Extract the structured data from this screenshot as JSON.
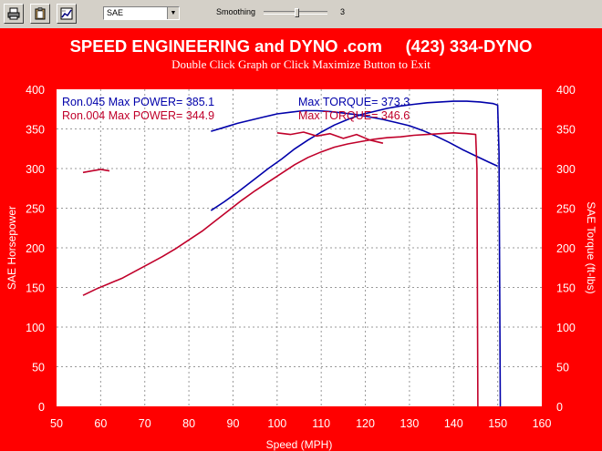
{
  "toolbar": {
    "buttons": [
      "printer-icon",
      "clipboard-icon",
      "chart-options-icon"
    ],
    "mode_select": "SAE",
    "smoothing_label": "Smoothing",
    "smoothing_value": "3"
  },
  "header": {
    "title": "SPEED ENGINEERING and DYNO .com     (423) 334-DYNO",
    "subtitle": "Double Click Graph or Click Maximize Button to Exit"
  },
  "chart_data": {
    "type": "line",
    "xlabel": "Speed (MPH)",
    "ylabel_left": "SAE Horsepower",
    "ylabel_right": "SAE Torque (ft-lbs)",
    "xlim": [
      50,
      160
    ],
    "ylim": [
      0,
      400
    ],
    "x_ticks": [
      50,
      60,
      70,
      80,
      90,
      100,
      110,
      120,
      130,
      140,
      150,
      160
    ],
    "y_ticks": [
      0,
      50,
      100,
      150,
      200,
      250,
      300,
      350,
      400
    ],
    "grid": true,
    "legend": [
      {
        "run": "Ron.045",
        "power_label": "Max POWER= 385.1",
        "torque_label": "Max TORQUE= 373.3",
        "color": "#0000aa"
      },
      {
        "run": "Ron.004",
        "power_label": "Max POWER= 344.9",
        "torque_label": "Max TORQUE= 346.6",
        "color": "#c0002a"
      }
    ],
    "series": [
      {
        "name": "Ron.045",
        "kind": "power",
        "color": "#0000aa",
        "points": [
          [
            85,
            247
          ],
          [
            88,
            258
          ],
          [
            91,
            270
          ],
          [
            95,
            287
          ],
          [
            98,
            300
          ],
          [
            101,
            312
          ],
          [
            104,
            325
          ],
          [
            107,
            336
          ],
          [
            110,
            346
          ],
          [
            113,
            355
          ],
          [
            116,
            362
          ],
          [
            119,
            368
          ],
          [
            122,
            372
          ],
          [
            125,
            376
          ],
          [
            128,
            379
          ],
          [
            131,
            381
          ],
          [
            134,
            383
          ],
          [
            137,
            384
          ],
          [
            140,
            385
          ],
          [
            143,
            385
          ],
          [
            146,
            384
          ],
          [
            149,
            382
          ],
          [
            150,
            380
          ],
          [
            150.3,
            320
          ],
          [
            150.6,
            0
          ]
        ]
      },
      {
        "name": "Ron.045",
        "kind": "torque",
        "color": "#0000aa",
        "points": [
          [
            85,
            347
          ],
          [
            88,
            352
          ],
          [
            91,
            357
          ],
          [
            94,
            361
          ],
          [
            97,
            365
          ],
          [
            100,
            369
          ],
          [
            103,
            371
          ],
          [
            106,
            373
          ],
          [
            109,
            373
          ],
          [
            112,
            372
          ],
          [
            115,
            370
          ],
          [
            118,
            368
          ],
          [
            121,
            365
          ],
          [
            124,
            362
          ],
          [
            127,
            358
          ],
          [
            130,
            354
          ],
          [
            133,
            348
          ],
          [
            136,
            341
          ],
          [
            139,
            333
          ],
          [
            142,
            324
          ],
          [
            145,
            316
          ],
          [
            148,
            308
          ],
          [
            150,
            303
          ]
        ]
      },
      {
        "name": "Ron.004",
        "kind": "power",
        "color": "#c0002a",
        "points": [
          [
            56,
            140
          ],
          [
            59,
            148
          ],
          [
            62,
            155
          ],
          [
            65,
            162
          ],
          [
            68,
            171
          ],
          [
            71,
            180
          ],
          [
            74,
            189
          ],
          [
            77,
            199
          ],
          [
            80,
            210
          ],
          [
            83,
            221
          ],
          [
            86,
            234
          ],
          [
            89,
            247
          ],
          [
            92,
            260
          ],
          [
            95,
            272
          ],
          [
            98,
            283
          ],
          [
            101,
            294
          ],
          [
            104,
            305
          ],
          [
            107,
            314
          ],
          [
            110,
            321
          ],
          [
            113,
            327
          ],
          [
            116,
            331
          ],
          [
            119,
            334
          ],
          [
            122,
            337
          ],
          [
            125,
            339
          ],
          [
            128,
            340
          ],
          [
            131,
            342
          ],
          [
            134,
            343
          ],
          [
            137,
            344
          ],
          [
            140,
            345
          ],
          [
            143,
            344
          ],
          [
            145,
            343
          ],
          [
            145.3,
            300
          ],
          [
            145.5,
            0
          ]
        ]
      },
      {
        "name": "Ron.004",
        "kind": "torque",
        "color": "#c0002a",
        "points": [
          [
            56,
            295
          ],
          [
            58,
            297
          ],
          [
            60,
            299
          ],
          [
            62,
            297
          ]
        ]
      },
      {
        "name": "Ron.004",
        "kind": "torque",
        "color": "#c0002a",
        "points": [
          [
            100,
            345
          ],
          [
            103,
            343
          ],
          [
            106,
            346
          ],
          [
            109,
            341
          ],
          [
            112,
            344
          ],
          [
            115,
            338
          ],
          [
            118,
            343
          ],
          [
            121,
            336
          ],
          [
            124,
            332
          ]
        ]
      }
    ]
  }
}
